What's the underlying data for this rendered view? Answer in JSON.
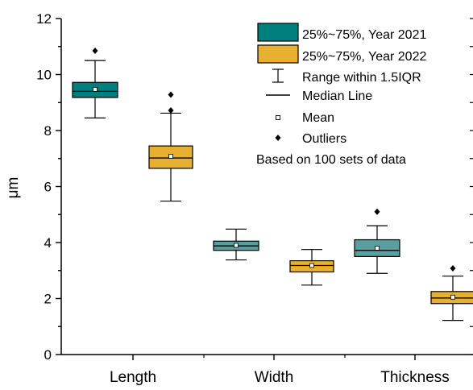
{
  "chart_data": {
    "type": "box",
    "ylabel": "μm",
    "ylim": [
      0,
      12
    ],
    "yticks": [
      "0",
      "2",
      "4",
      "6",
      "8",
      "10",
      "12"
    ],
    "categories": [
      "Length",
      "Width",
      "Thickness"
    ],
    "series": [
      {
        "name": "25%~75%, Year 2021",
        "color": "#007f7f",
        "boxes": [
          {
            "category": "Length",
            "min": 8.45,
            "q1": 9.18,
            "median": 9.4,
            "q3": 9.72,
            "max": 10.5,
            "mean": 9.47,
            "outliers": [
              10.85
            ]
          },
          {
            "category": "Width",
            "min": 3.38,
            "q1": 3.72,
            "median": 3.88,
            "q3": 4.05,
            "max": 4.48,
            "mean": 3.9,
            "outliers": []
          },
          {
            "category": "Thickness",
            "min": 2.9,
            "q1": 3.5,
            "median": 3.72,
            "q3": 4.1,
            "max": 4.6,
            "mean": 3.8,
            "outliers": [
              5.1
            ]
          }
        ]
      },
      {
        "name": "25%~75%, Year 2022",
        "color": "#e8b030",
        "boxes": [
          {
            "category": "Length",
            "min": 5.48,
            "q1": 6.65,
            "median": 7.02,
            "q3": 7.45,
            "max": 8.62,
            "mean": 7.08,
            "outliers": [
              8.72,
              9.28
            ]
          },
          {
            "category": "Width",
            "min": 2.48,
            "q1": 2.95,
            "median": 3.18,
            "q3": 3.35,
            "max": 3.75,
            "mean": 3.18,
            "outliers": []
          },
          {
            "category": "Thickness",
            "min": 1.22,
            "q1": 1.82,
            "median": 2.02,
            "q3": 2.25,
            "max": 2.8,
            "mean": 2.05,
            "outliers": [
              3.08
            ]
          }
        ]
      }
    ],
    "legend": {
      "placement": "top-right",
      "entries": [
        "25%~75%, Year 2021",
        "25%~75%, Year 2022",
        "Range within 1.5IQR",
        "Median Line",
        "Mean",
        "Outliers"
      ],
      "note": "Based on 100 sets of data"
    }
  }
}
